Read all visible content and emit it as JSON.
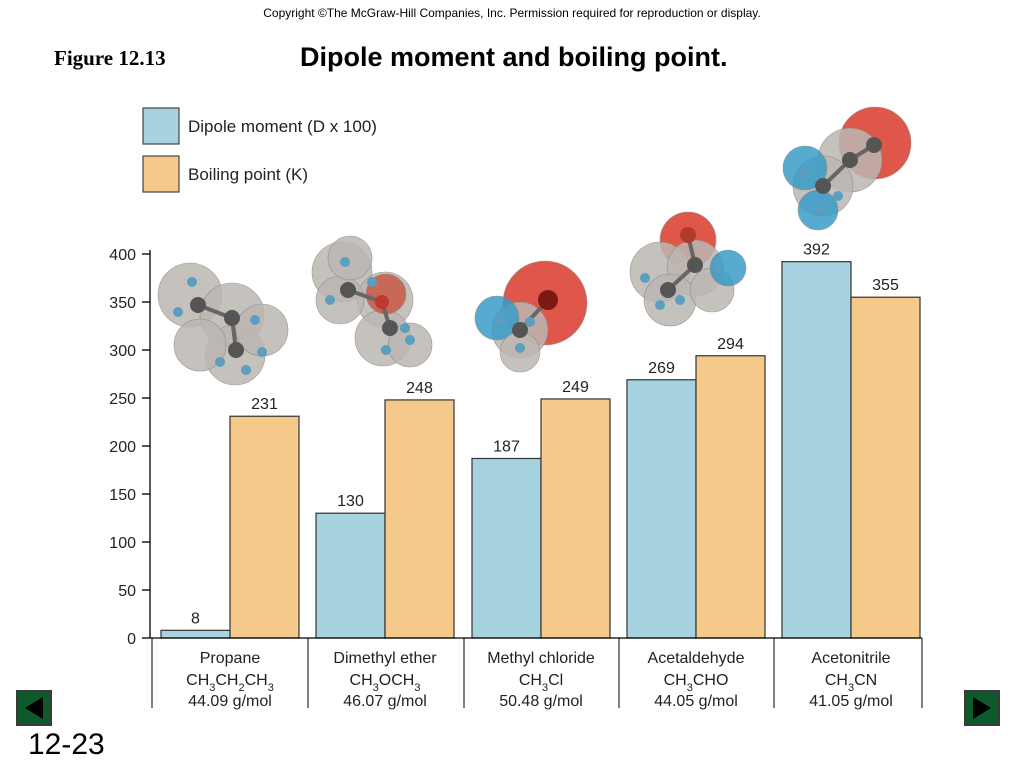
{
  "header": {
    "copyright": "Copyright ©The McGraw-Hill Companies, Inc.  Permission required for reproduction or display.",
    "figure_label": "Figure 12.13",
    "title": "Dipole moment and boiling point."
  },
  "footer": {
    "slide_number": "12-23",
    "prev_icon": "triangle-left-icon",
    "next_icon": "triangle-right-icon"
  },
  "colors": {
    "dipole": "#a6d3df",
    "boiling": "#f5c98a",
    "nav_green": "#0f5a2a",
    "axis": "#000000"
  },
  "chart_data": {
    "type": "bar",
    "ylim": [
      0,
      400
    ],
    "yticks": [
      0,
      50,
      100,
      150,
      200,
      250,
      300,
      350,
      400
    ],
    "legend_position": "top-left",
    "categories": [
      {
        "name": "Propane",
        "formula": "CH3CH2CH3",
        "formula_parts": [
          "CH",
          "3",
          "CH",
          "2",
          "CH",
          "3"
        ],
        "molar_mass": "44.09 g/mol",
        "model": "propane-model-icon"
      },
      {
        "name": "Dimethyl ether",
        "formula": "CH3OCH3",
        "formula_parts": [
          "CH",
          "3",
          "OCH",
          "3"
        ],
        "molar_mass": "46.07 g/mol",
        "model": "dimethyl-ether-model-icon"
      },
      {
        "name": "Methyl chloride",
        "formula": "CH3Cl",
        "formula_parts": [
          "CH",
          "3",
          "Cl"
        ],
        "molar_mass": "50.48 g/mol",
        "model": "methyl-chloride-model-icon"
      },
      {
        "name": "Acetaldehyde",
        "formula": "CH3CHO",
        "formula_parts": [
          "CH",
          "3",
          "CHO"
        ],
        "molar_mass": "44.05 g/mol",
        "model": "acetaldehyde-model-icon"
      },
      {
        "name": "Acetonitrile",
        "formula": "CH3CN",
        "formula_parts": [
          "CH",
          "3",
          "CN"
        ],
        "molar_mass": "41.05 g/mol",
        "model": "acetonitrile-model-icon"
      }
    ],
    "series": [
      {
        "name": "Dipole moment (D x 100)",
        "values": [
          8,
          130,
          187,
          269,
          392
        ]
      },
      {
        "name": "Boiling point (K)",
        "values": [
          231,
          248,
          249,
          294,
          355
        ]
      }
    ]
  }
}
